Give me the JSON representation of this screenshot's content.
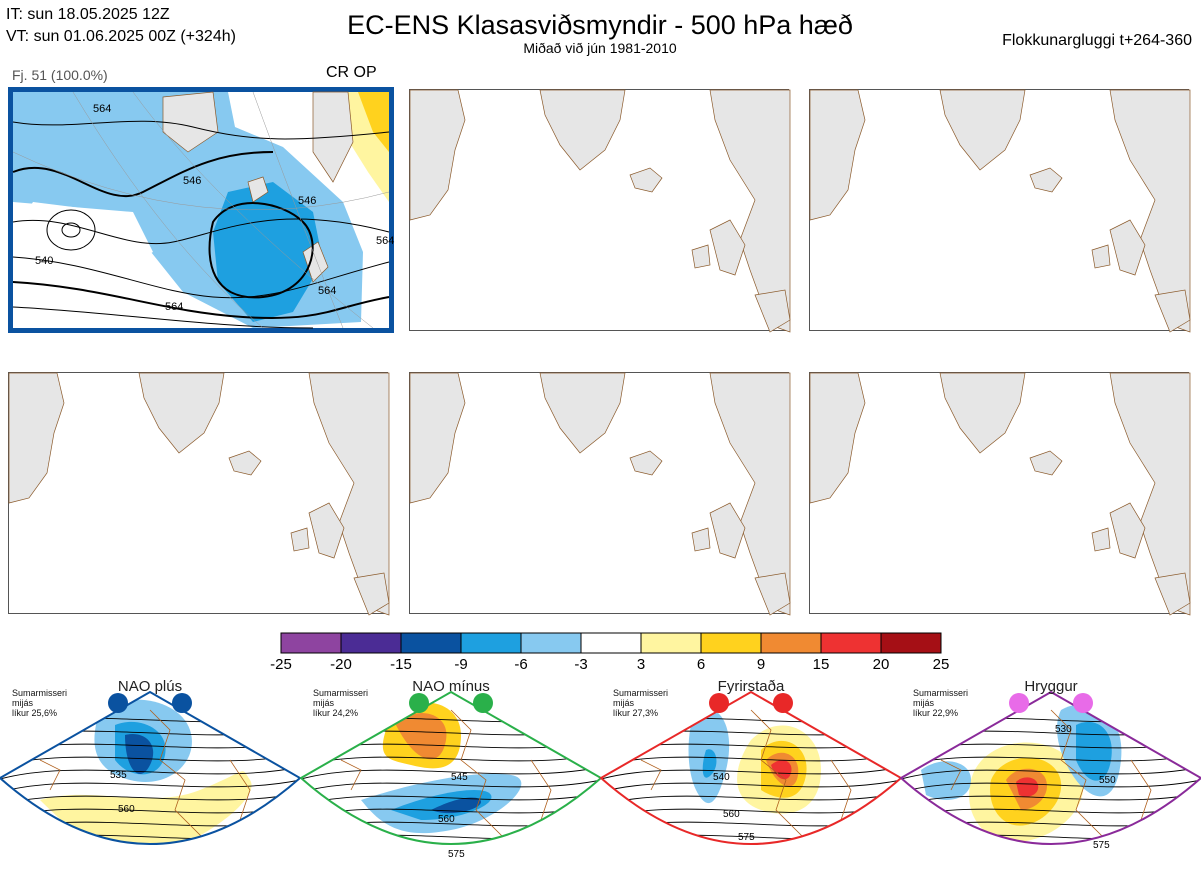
{
  "header": {
    "it": "IT: sun 18.05.2025 12Z",
    "vt": "VT: sun 01.06.2025 00Z  (+324h)",
    "title": "EC-ENS Klasasviðsmyndir - 500 hPa hæð",
    "subtitle": "Miðað við jún 1981-2010",
    "window": "Flokkunargluggi t+264-360"
  },
  "panel1": {
    "members": "Fj. 51 (100.0%)",
    "tag": "CR OP",
    "contour_labels": [
      "546",
      "546",
      "540",
      "564",
      "564",
      "564",
      "564"
    ]
  },
  "colorbar": {
    "ticks": [
      "-25",
      "-20",
      "-15",
      "-9",
      "-6",
      "-3",
      "3",
      "6",
      "9",
      "15",
      "20",
      "25"
    ],
    "colors": [
      "#8e44a0",
      "#4b2c95",
      "#0a52a0",
      "#1ea0e0",
      "#87c9f0",
      "#ffffff",
      "#fff5a0",
      "#ffd21e",
      "#f08a32",
      "#ee3232",
      "#a50f15"
    ]
  },
  "regimes": [
    {
      "name": "NAO plús",
      "info": [
        "Sumarmisseri",
        "mijás",
        "líkur 25,6%"
      ],
      "color": "#0a52a0",
      "labels": [
        "535",
        "560"
      ]
    },
    {
      "name": "NAO mínus",
      "info": [
        "Sumarmisseri",
        "mijás",
        "líkur 24,2%"
      ],
      "color": "#2ab04a",
      "labels": [
        "545",
        "560",
        "575"
      ]
    },
    {
      "name": "Fyrirstaða",
      "info": [
        "Sumarmisseri",
        "mijás",
        "líkur 27,3%"
      ],
      "color": "#e82828",
      "labels": [
        "540",
        "560",
        "575"
      ]
    },
    {
      "name": "Hryggur",
      "info": [
        "Sumarmisseri",
        "mijás",
        "líkur 22,9%"
      ],
      "color": "#8a2a9a",
      "labels": [
        "530",
        "550",
        "575"
      ]
    }
  ]
}
